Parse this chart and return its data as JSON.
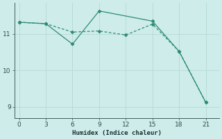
{
  "line1_x": [
    0,
    3,
    6,
    9,
    12,
    15,
    18,
    21
  ],
  "line1_y": [
    11.32,
    11.28,
    11.05,
    11.08,
    10.97,
    11.27,
    10.52,
    9.12
  ],
  "line2_x": [
    0,
    3,
    6,
    9,
    15,
    18,
    21
  ],
  "line2_y": [
    11.32,
    11.28,
    10.72,
    11.63,
    11.35,
    10.52,
    9.12
  ],
  "color": "#2e8b74",
  "bg_color": "#ceecea",
  "grid_color": "#b8dcd8",
  "xlabel": "Humidex (Indice chaleur)",
  "xticks": [
    0,
    3,
    6,
    9,
    12,
    15,
    18,
    21
  ],
  "yticks": [
    9,
    10,
    11
  ],
  "xlim": [
    -0.5,
    22.5
  ],
  "ylim": [
    8.7,
    11.85
  ]
}
